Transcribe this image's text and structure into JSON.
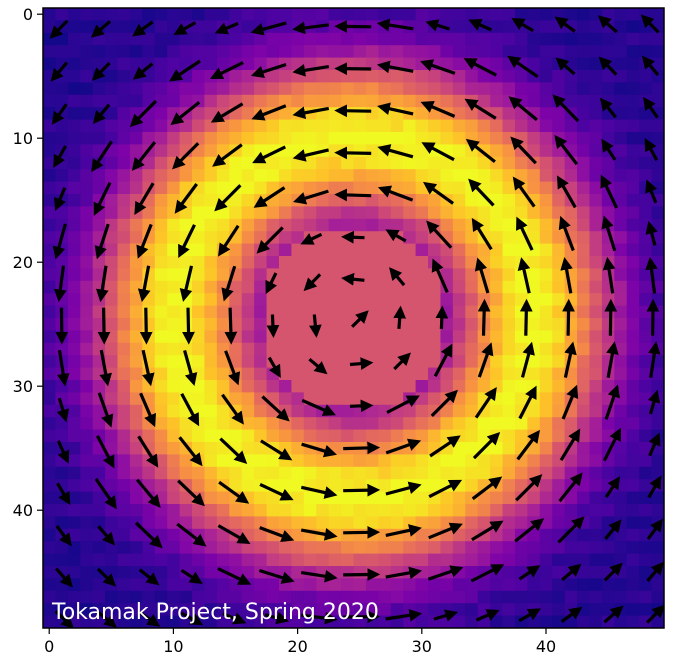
{
  "chart_data": {
    "type": "heatmap",
    "title": "",
    "xlabel": "",
    "ylabel": "",
    "grid_size": 50,
    "xlim": [
      -0.5,
      49.5
    ],
    "ylim": [
      49.5,
      -0.5
    ],
    "x_ticks": [
      0,
      10,
      20,
      30,
      40
    ],
    "y_ticks": [
      0,
      10,
      20,
      30,
      40
    ],
    "colormap": "plasma",
    "grid": false,
    "field": {
      "description_free": true,
      "center": [
        24.5,
        24.5
      ],
      "ring_radius": 18.5,
      "ring_width": 6.5,
      "core_radius": 7.5,
      "core_value": 0.55,
      "ring_peak": 1.0,
      "edge_value": 0.05
    },
    "quiver": {
      "step": 3.4,
      "rotation": "counterclockwise",
      "arrow_color": "#000000"
    },
    "annotation": "Tokamak Project, Spring 2020",
    "colors": {
      "core": "#d6556d",
      "ring": "#f0f921",
      "background": "#0d0887",
      "frame": "#000000"
    }
  }
}
